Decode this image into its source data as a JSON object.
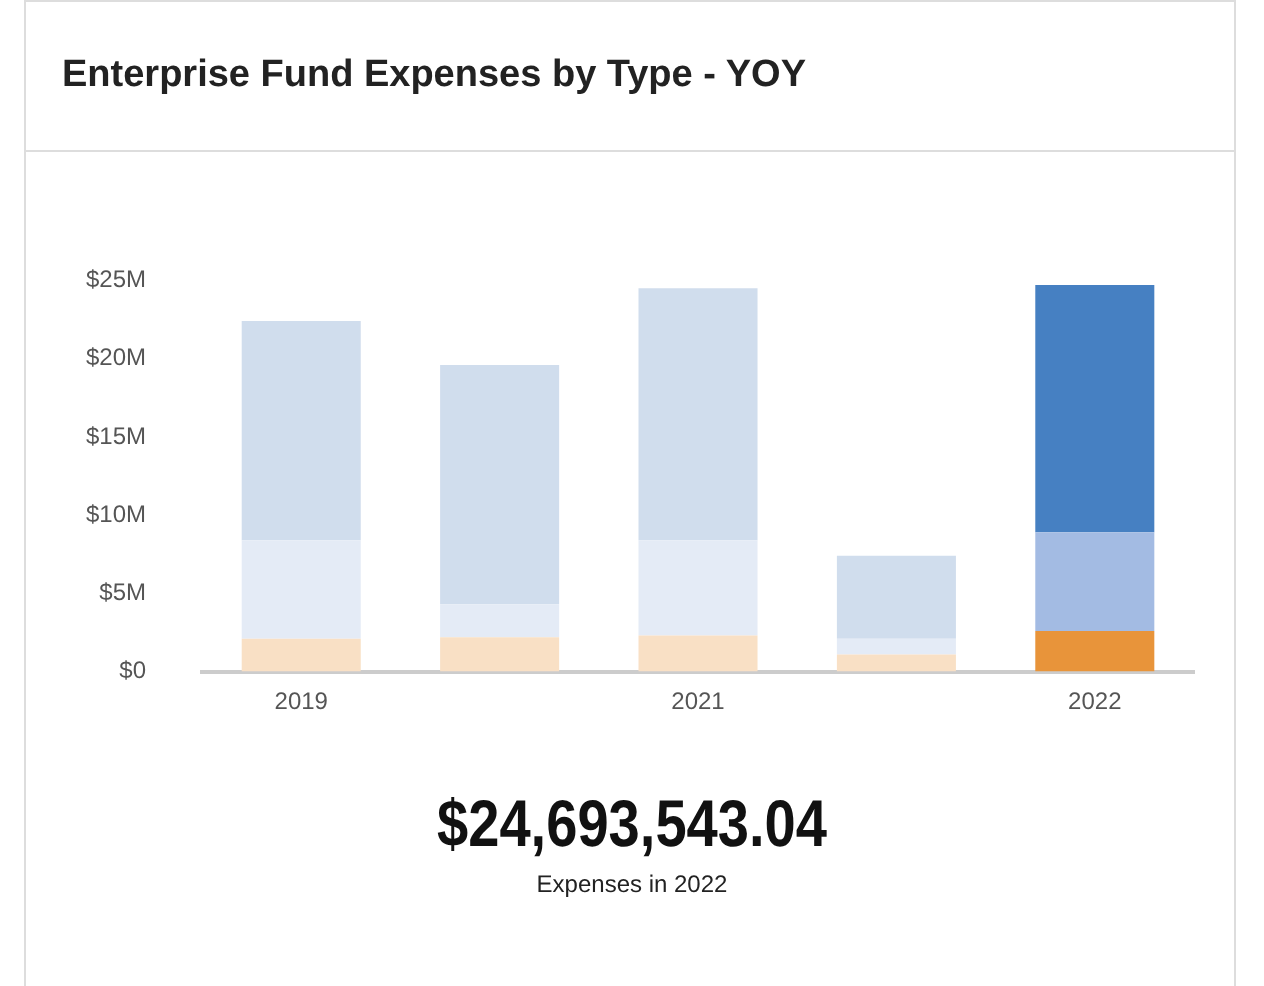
{
  "chart_data": {
    "type": "bar",
    "title": "Enterprise Fund Expenses by Type - YOY",
    "stacked": true,
    "categories": [
      "2019",
      null,
      "2021",
      null,
      "2022"
    ],
    "series": [
      {
        "values": [
          2.1,
          2.2,
          2.3,
          1.1,
          2.6
        ],
        "colors": [
          "#f9e0c5",
          "#f9e0c5",
          "#f9e0c5",
          "#f9e0c5",
          "#e8943a"
        ]
      },
      {
        "values": [
          6.3,
          2.1,
          6.1,
          1.0,
          6.3
        ],
        "colors": [
          "#e4ebf6",
          "#e4ebf6",
          "#e4ebf6",
          "#e4ebf6",
          "#a3bbe3"
        ]
      },
      {
        "values": [
          14.0,
          15.3,
          16.1,
          5.3,
          15.8
        ],
        "colors": [
          "#d0dded",
          "#d0dded",
          "#d0dded",
          "#d0dded",
          "#4680c2"
        ]
      }
    ],
    "ylim": [
      0,
      25
    ],
    "yticks": [
      {
        "value": 0,
        "label": "$0"
      },
      {
        "value": 5,
        "label": "$5M"
      },
      {
        "value": 10,
        "label": "$10M"
      },
      {
        "value": 15,
        "label": "$15M"
      },
      {
        "value": 20,
        "label": "$20M"
      },
      {
        "value": 25,
        "label": "$25M"
      }
    ],
    "grid": false,
    "legend": false,
    "annotations": [
      "$24,693,543.04",
      "Expenses in 2022"
    ]
  }
}
